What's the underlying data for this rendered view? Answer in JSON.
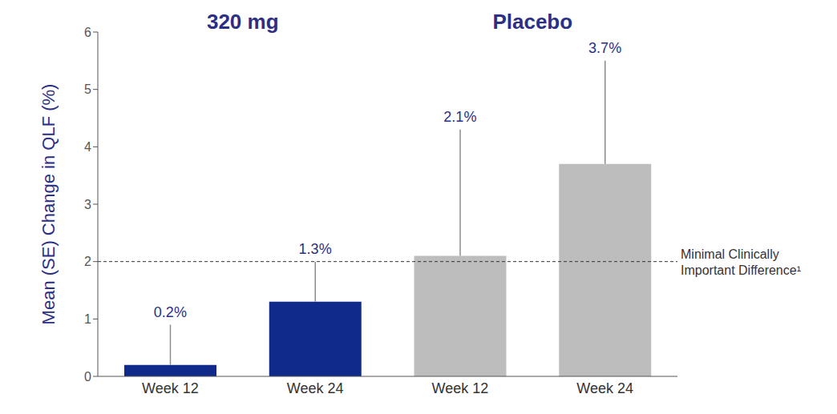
{
  "chart_data": {
    "type": "bar",
    "groups": [
      {
        "name": "320 mg",
        "count": 2
      },
      {
        "name": "Placebo",
        "count": 2
      }
    ],
    "y_label": "Mean (SE) Change in QLF (%)",
    "categories": [
      "Week 12",
      "Week 24",
      "Week 12",
      "Week 24"
    ],
    "values": [
      0.2,
      1.3,
      2.1,
      3.7
    ],
    "value_labels": [
      "0.2%",
      "1.3%",
      "2.1%",
      "3.7%"
    ],
    "errors": [
      0.7,
      0.7,
      2.2,
      1.8
    ],
    "colors": [
      "#102a8c",
      "#102a8c",
      "#bdbdbd",
      "#bdbdbd"
    ],
    "ylim": [
      0,
      6
    ],
    "yticks": [
      0,
      1,
      2,
      3,
      4,
      5,
      6
    ],
    "reference_line": {
      "value": 2,
      "label": "Minimal Clinically Important Difference¹"
    },
    "data_labels": true,
    "grid": false
  }
}
